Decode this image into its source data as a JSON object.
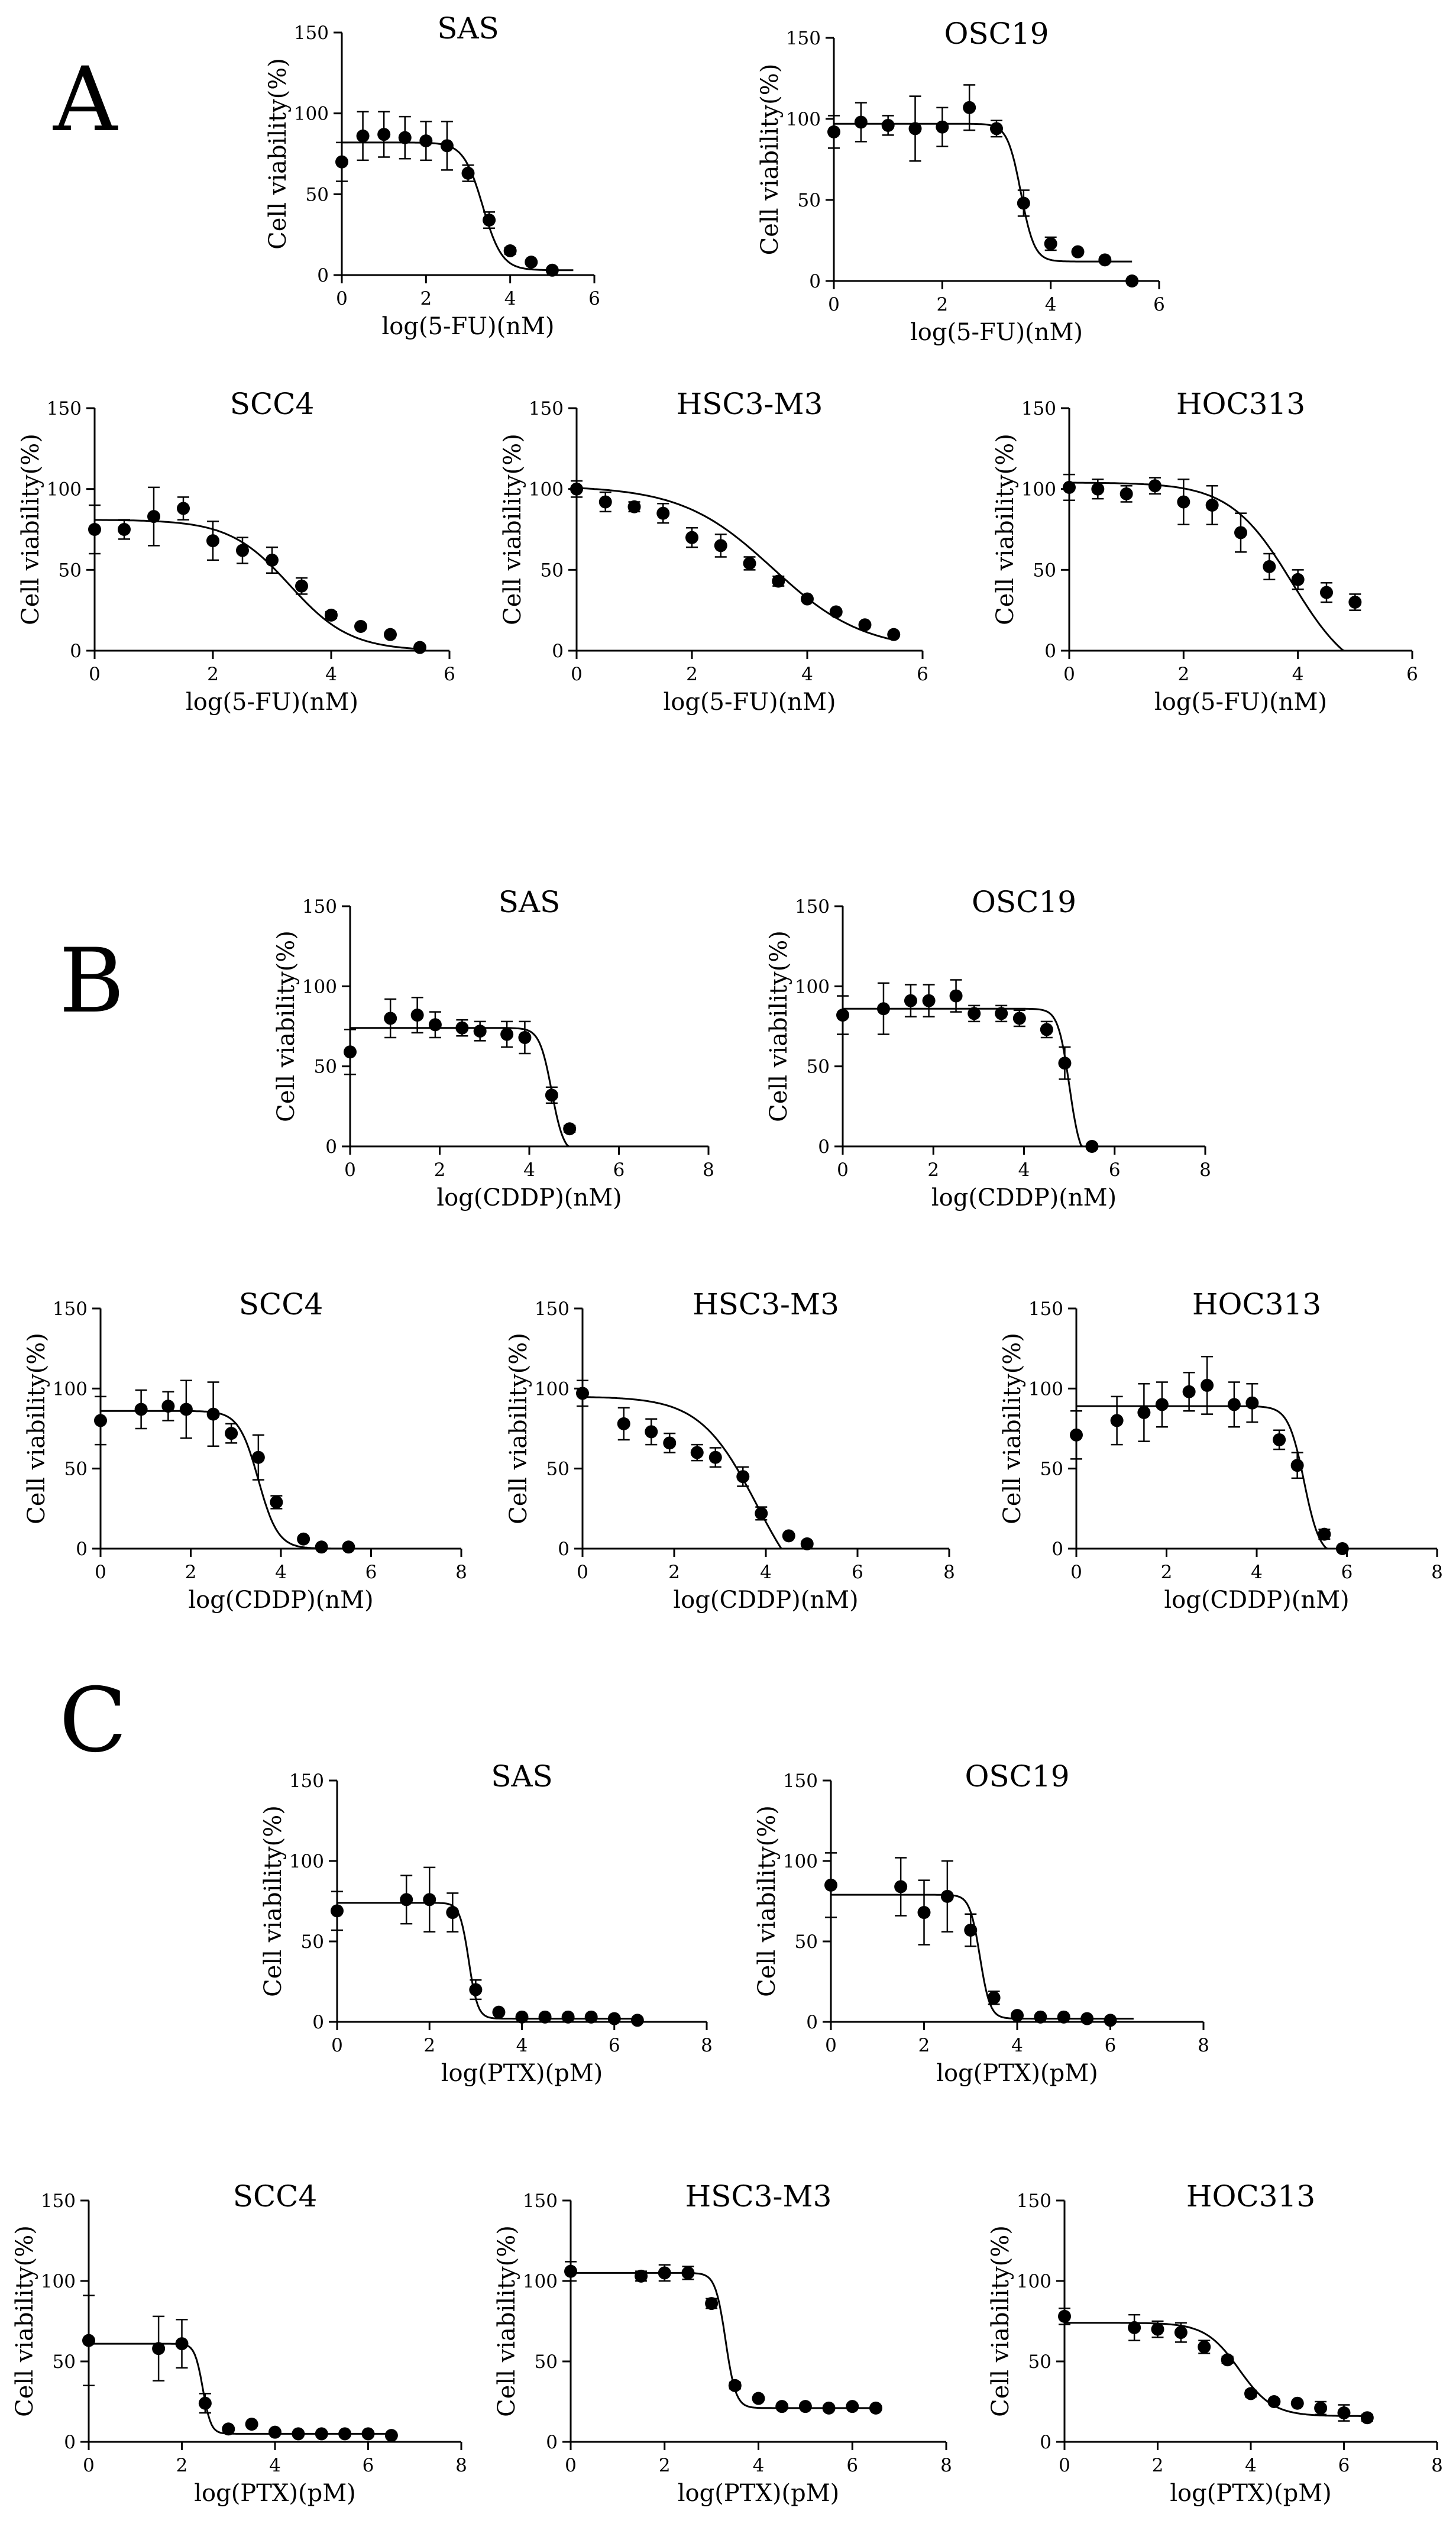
{
  "colors": {
    "ink": "#000000",
    "background": "#ffffff"
  },
  "panels": [
    {
      "label": "A",
      "charts": [
        {
          "type": "scatter",
          "title": "SAS",
          "xlabel": "log(5-FU)(nM)",
          "ylabel": "Cell viability(%)",
          "xlim": [
            0,
            6
          ],
          "ylim": [
            0,
            150
          ],
          "xticks": [
            0,
            2,
            4,
            6
          ],
          "yticks": [
            0,
            50,
            100,
            150
          ],
          "x": [
            0,
            0.5,
            1,
            1.5,
            2,
            2.5,
            3,
            3.5,
            4,
            4.5,
            5
          ],
          "y": [
            70,
            86,
            87,
            85,
            83,
            80,
            63,
            34,
            15,
            8,
            3
          ],
          "err": [
            12,
            15,
            14,
            13,
            12,
            15,
            5,
            5,
            2,
            1,
            1
          ],
          "fit": {
            "top": 82,
            "bottom": 3,
            "ec50": 3.35,
            "hill": -1.9,
            "xmin": 0,
            "xmax": 5.5
          }
        },
        {
          "type": "scatter",
          "title": "OSC19",
          "xlabel": "log(5-FU)(nM)",
          "ylabel": "Cell viability(%)",
          "xlim": [
            0,
            6
          ],
          "ylim": [
            0,
            150
          ],
          "xticks": [
            0,
            2,
            4,
            6
          ],
          "yticks": [
            0,
            50,
            100,
            150
          ],
          "x": [
            0,
            0.5,
            1,
            1.5,
            2,
            2.5,
            3,
            3.5,
            4,
            4.5,
            5,
            5.5
          ],
          "y": [
            92,
            98,
            96,
            94,
            95,
            107,
            94,
            48,
            23,
            18,
            13,
            0
          ],
          "err": [
            10,
            12,
            6,
            20,
            12,
            14,
            5,
            8,
            4,
            1,
            1,
            1
          ],
          "fit": {
            "top": 97,
            "bottom": 12,
            "ec50": 3.45,
            "hill": -3.5,
            "xmin": 0,
            "xmax": 5.5
          }
        },
        {
          "type": "scatter",
          "title": "SCC4",
          "xlabel": "log(5-FU)(nM)",
          "ylabel": "Cell viability(%)",
          "xlim": [
            0,
            6
          ],
          "ylim": [
            0,
            150
          ],
          "xticks": [
            0,
            2,
            4,
            6
          ],
          "yticks": [
            0,
            50,
            100,
            150
          ],
          "x": [
            0,
            0.5,
            1,
            1.5,
            2,
            2.5,
            3,
            3.5,
            4,
            4.5,
            5,
            5.5
          ],
          "y": [
            75,
            75,
            83,
            88,
            68,
            62,
            56,
            40,
            22,
            15,
            10,
            2
          ],
          "err": [
            15,
            6,
            18,
            7,
            12,
            8,
            8,
            5,
            2,
            1,
            1,
            1
          ],
          "fit": {
            "top": 81,
            "bottom": 0,
            "ec50": 3.3,
            "hill": -0.85,
            "xmin": 0,
            "xmax": 5.5
          }
        },
        {
          "type": "scatter",
          "title": "HSC3-M3",
          "xlabel": "log(5-FU)(nM)",
          "ylabel": "Cell viability(%)",
          "xlim": [
            0,
            6
          ],
          "ylim": [
            0,
            150
          ],
          "xticks": [
            0,
            2,
            4,
            6
          ],
          "yticks": [
            0,
            50,
            100,
            150
          ],
          "x": [
            0,
            0.5,
            1,
            1.5,
            2,
            2.5,
            3,
            3.5,
            4,
            4.5,
            5,
            5.5
          ],
          "y": [
            100,
            92,
            89,
            85,
            70,
            65,
            54,
            43,
            32,
            24,
            16,
            10
          ],
          "err": [
            5,
            6,
            3,
            6,
            6,
            7,
            4,
            3,
            1,
            1,
            1,
            1
          ],
          "fit": {
            "top": 102,
            "bottom": 0,
            "ec50": 3.4,
            "hill": -0.55,
            "xmin": 0,
            "xmax": 5.5
          }
        },
        {
          "type": "scatter",
          "title": "HOC313",
          "xlabel": "log(5-FU)(nM)",
          "ylabel": "Cell viability(%)",
          "xlim": [
            0,
            6
          ],
          "ylim": [
            0,
            150
          ],
          "xticks": [
            0,
            2,
            4,
            6
          ],
          "yticks": [
            0,
            50,
            100,
            150
          ],
          "x": [
            0,
            0.5,
            1,
            1.5,
            2,
            2.5,
            3,
            3.5,
            4,
            4.5,
            5
          ],
          "y": [
            101,
            100,
            97,
            102,
            92,
            90,
            73,
            52,
            44,
            36,
            30
          ],
          "err": [
            8,
            6,
            5,
            5,
            14,
            12,
            12,
            8,
            6,
            6,
            5
          ],
          "fit": {
            "top": 104,
            "bottom": -20,
            "ec50": 3.9,
            "hill": -0.8,
            "xmin": 0,
            "xmax": 5.5
          }
        }
      ]
    },
    {
      "label": "B",
      "charts": [
        {
          "type": "scatter",
          "title": "SAS",
          "xlabel": "log(CDDP)(nM)",
          "ylabel": "Cell viability(%)",
          "xlim": [
            0,
            8
          ],
          "ylim": [
            0,
            150
          ],
          "xticks": [
            0,
            2,
            4,
            6,
            8
          ],
          "yticks": [
            0,
            50,
            100,
            150
          ],
          "x": [
            0,
            0.9,
            1.5,
            1.9,
            2.5,
            2.9,
            3.5,
            3.9,
            4.5,
            4.9
          ],
          "y": [
            59,
            80,
            82,
            76,
            74,
            72,
            70,
            68,
            32,
            11
          ],
          "err": [
            14,
            12,
            11,
            8,
            5,
            6,
            8,
            10,
            5,
            2
          ],
          "fit": {
            "top": 74,
            "bottom": -5,
            "ec50": 4.5,
            "hill": -3.2,
            "xmin": 0,
            "xmax": 5.5
          }
        },
        {
          "type": "scatter",
          "title": "OSC19",
          "xlabel": "log(CDDP)(nM)",
          "ylabel": "Cell viability(%)",
          "xlim": [
            0,
            8
          ],
          "ylim": [
            0,
            150
          ],
          "xticks": [
            0,
            2,
            4,
            6,
            8
          ],
          "yticks": [
            0,
            50,
            100,
            150
          ],
          "x": [
            0,
            0.9,
            1.5,
            1.9,
            2.5,
            2.9,
            3.5,
            3.9,
            4.5,
            4.9,
            5.5
          ],
          "y": [
            82,
            86,
            91,
            91,
            94,
            83,
            83,
            80,
            73,
            52,
            0
          ],
          "err": [
            12,
            16,
            10,
            10,
            10,
            5,
            5,
            5,
            5,
            10,
            1
          ],
          "fit": {
            "top": 86,
            "bottom": -10,
            "ec50": 5.0,
            "hill": -3.5,
            "xmin": 0,
            "xmax": 5.5
          }
        },
        {
          "type": "scatter",
          "title": "SCC4",
          "xlabel": "log(CDDP)(nM)",
          "ylabel": "Cell viability(%)",
          "xlim": [
            0,
            8
          ],
          "ylim": [
            0,
            150
          ],
          "xticks": [
            0,
            2,
            4,
            6,
            8
          ],
          "yticks": [
            0,
            50,
            100,
            150
          ],
          "x": [
            0,
            0.9,
            1.5,
            1.9,
            2.5,
            2.9,
            3.5,
            3.9,
            4.5,
            4.9,
            5.5
          ],
          "y": [
            80,
            87,
            89,
            87,
            84,
            72,
            57,
            29,
            6,
            1,
            1
          ],
          "err": [
            15,
            12,
            9,
            18,
            20,
            6,
            14,
            4,
            1,
            1,
            1
          ],
          "fit": {
            "top": 86,
            "bottom": 0,
            "ec50": 3.5,
            "hill": -2.0,
            "xmin": 0,
            "xmax": 5.5
          }
        },
        {
          "type": "scatter",
          "title": "HSC3-M3",
          "xlabel": "log(CDDP)(nM)",
          "ylabel": "Cell viability(%)",
          "xlim": [
            0,
            8
          ],
          "ylim": [
            0,
            150
          ],
          "xticks": [
            0,
            2,
            4,
            6,
            8
          ],
          "yticks": [
            0,
            50,
            100,
            150
          ],
          "x": [
            0,
            0.9,
            1.5,
            1.9,
            2.5,
            2.9,
            3.5,
            3.9,
            4.5,
            4.9
          ],
          "y": [
            97,
            78,
            73,
            66,
            60,
            57,
            45,
            22,
            8,
            3
          ],
          "err": [
            8,
            10,
            8,
            6,
            5,
            6,
            6,
            4,
            1,
            1
          ],
          "fit": {
            "top": 95,
            "bottom": -40,
            "ec50": 3.8,
            "hill": -0.7,
            "xmin": 0,
            "xmax": 5.3
          }
        },
        {
          "type": "scatter",
          "title": "HOC313",
          "xlabel": "log(CDDP)(nM)",
          "ylabel": "Cell viability(%)",
          "xlim": [
            0,
            8
          ],
          "ylim": [
            0,
            150
          ],
          "xticks": [
            0,
            2,
            4,
            6,
            8
          ],
          "yticks": [
            0,
            50,
            100,
            150
          ],
          "x": [
            0,
            0.9,
            1.5,
            1.9,
            2.5,
            2.9,
            3.5,
            3.9,
            4.5,
            4.9,
            5.5,
            5.9
          ],
          "y": [
            71,
            80,
            85,
            90,
            98,
            102,
            90,
            91,
            68,
            52,
            9,
            0
          ],
          "err": [
            15,
            15,
            18,
            14,
            12,
            18,
            14,
            12,
            6,
            8,
            3,
            1
          ],
          "fit": {
            "top": 89,
            "bottom": -5,
            "ec50": 5.05,
            "hill": -2.5,
            "xmin": 0,
            "xmax": 5.9
          }
        }
      ]
    },
    {
      "label": "C",
      "charts": [
        {
          "type": "scatter",
          "title": "SAS",
          "xlabel": "log(PTX)(pM)",
          "ylabel": "Cell viability(%)",
          "xlim": [
            0,
            8
          ],
          "ylim": [
            0,
            150
          ],
          "xticks": [
            0,
            2,
            4,
            6,
            8
          ],
          "yticks": [
            0,
            50,
            100,
            150
          ],
          "x": [
            0,
            1.5,
            2,
            2.5,
            3,
            3.5,
            4,
            4.5,
            5,
            5.5,
            6,
            6.5
          ],
          "y": [
            69,
            76,
            76,
            68,
            20,
            6,
            3,
            3,
            3,
            3,
            2,
            1
          ],
          "err": [
            12,
            15,
            20,
            12,
            6,
            1,
            1,
            1,
            1,
            1,
            1,
            1
          ],
          "fit": {
            "top": 74,
            "bottom": 2,
            "ec50": 2.85,
            "hill": -4.5,
            "xmin": 0,
            "xmax": 6.5
          }
        },
        {
          "type": "scatter",
          "title": "OSC19",
          "xlabel": "log(PTX)(pM)",
          "ylabel": "Cell viability(%)",
          "xlim": [
            0,
            8
          ],
          "ylim": [
            0,
            150
          ],
          "xticks": [
            0,
            2,
            4,
            6,
            8
          ],
          "yticks": [
            0,
            50,
            100,
            150
          ],
          "x": [
            0,
            1.5,
            2,
            2.5,
            3,
            3.5,
            4,
            4.5,
            5,
            5.5,
            6
          ],
          "y": [
            85,
            84,
            68,
            78,
            57,
            15,
            4,
            3,
            3,
            2,
            1
          ],
          "err": [
            20,
            18,
            20,
            22,
            10,
            4,
            1,
            1,
            1,
            1,
            1
          ],
          "fit": {
            "top": 79,
            "bottom": 2,
            "ec50": 3.2,
            "hill": -4.0,
            "xmin": 0,
            "xmax": 6.5
          }
        },
        {
          "type": "scatter",
          "title": "SCC4",
          "xlabel": "log(PTX)(pM)",
          "ylabel": "Cell viability(%)",
          "xlim": [
            0,
            8
          ],
          "ylim": [
            0,
            150
          ],
          "xticks": [
            0,
            2,
            4,
            6,
            8
          ],
          "yticks": [
            0,
            50,
            100,
            150
          ],
          "x": [
            0,
            1.5,
            2,
            2.5,
            3,
            3.5,
            4,
            4.5,
            5,
            5.5,
            6,
            6.5
          ],
          "y": [
            63,
            58,
            61,
            24,
            8,
            11,
            6,
            5,
            5,
            5,
            5,
            4
          ],
          "err": [
            28,
            20,
            15,
            6,
            1,
            1,
            1,
            1,
            1,
            1,
            1,
            1
          ],
          "fit": {
            "top": 61,
            "bottom": 5,
            "ec50": 2.45,
            "hill": -5.0,
            "xmin": 0,
            "xmax": 6.5
          }
        },
        {
          "type": "scatter",
          "title": "HSC3-M3",
          "xlabel": "log(PTX)(pM)",
          "ylabel": "Cell viability(%)",
          "xlim": [
            0,
            8
          ],
          "ylim": [
            0,
            150
          ],
          "xticks": [
            0,
            2,
            4,
            6,
            8
          ],
          "yticks": [
            0,
            50,
            100,
            150
          ],
          "x": [
            0,
            1.5,
            2,
            2.5,
            3,
            3.5,
            4,
            4.5,
            5,
            5.5,
            6,
            6.5
          ],
          "y": [
            106,
            103,
            105,
            105,
            86,
            35,
            27,
            22,
            22,
            21,
            22,
            21
          ],
          "err": [
            6,
            3,
            5,
            4,
            3,
            2,
            1,
            1,
            1,
            1,
            1,
            1
          ],
          "fit": {
            "top": 105,
            "bottom": 21,
            "ec50": 3.3,
            "hill": -4.0,
            "xmin": 0,
            "xmax": 6.5
          }
        },
        {
          "type": "scatter",
          "title": "HOC313",
          "xlabel": "log(PTX)(pM)",
          "ylabel": "Cell viability(%)",
          "xlim": [
            0,
            8
          ],
          "ylim": [
            0,
            150
          ],
          "xticks": [
            0,
            2,
            4,
            6,
            8
          ],
          "yticks": [
            0,
            50,
            100,
            150
          ],
          "x": [
            0,
            1.5,
            2,
            2.5,
            3,
            3.5,
            4,
            4.5,
            5,
            5.5,
            6,
            6.5
          ],
          "y": [
            78,
            71,
            70,
            68,
            59,
            51,
            30,
            25,
            24,
            21,
            18,
            15
          ],
          "err": [
            5,
            8,
            5,
            6,
            4,
            2,
            2,
            1,
            1,
            4,
            5,
            2
          ],
          "fit": {
            "top": 74,
            "bottom": 16,
            "ec50": 3.75,
            "hill": -1.2,
            "xmin": 0,
            "xmax": 6.5
          }
        }
      ]
    }
  ]
}
